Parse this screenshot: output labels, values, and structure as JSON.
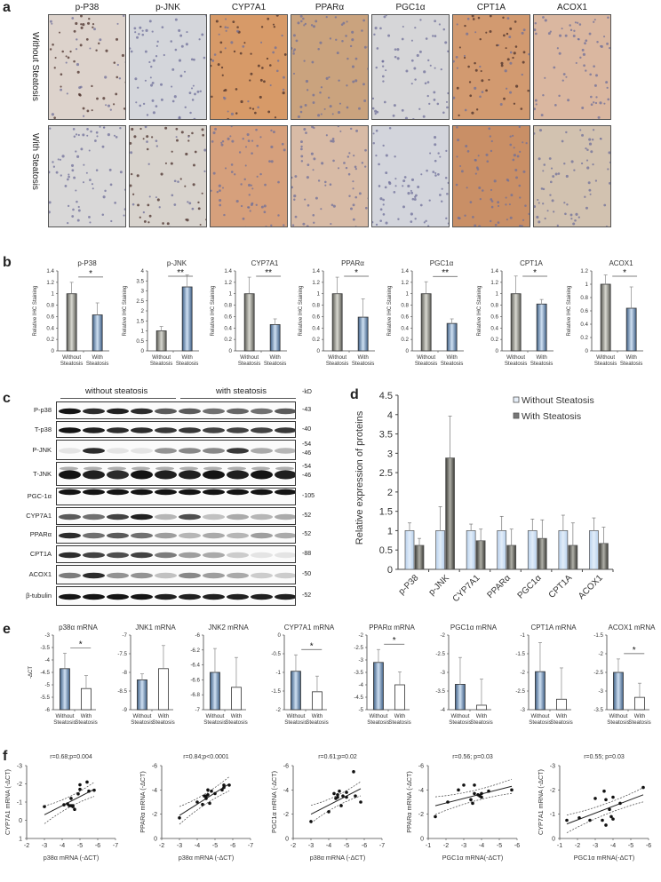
{
  "panel_a": {
    "label": "a",
    "columns": [
      "p-P38",
      "p-JNK",
      "CYP7A1",
      "PPARα",
      "PGC1α",
      "CPT1A",
      "ACOX1"
    ],
    "rows": [
      "Without Steatosis",
      "With Steatosis"
    ],
    "tile_colors": {
      "without": [
        "#ddd3cc",
        "#d4d6db",
        "#d79a68",
        "#caa37e",
        "#d6d6d8",
        "#d29a70",
        "#dab7a0"
      ],
      "with": [
        "#d9d8d8",
        "#d8d3cd",
        "#d6a07c",
        "#d8bba6",
        "#d3d5dc",
        "#c98f66",
        "#d2c2b0"
      ]
    }
  },
  "panel_b": {
    "label": "b",
    "ylabel": "Relative IHC Staining",
    "xlabels": [
      "Without\nSteatosis",
      "With\nSteatosis"
    ]
  },
  "panel_c": {
    "label": "c",
    "group1": "without steatosis",
    "group2": "with steatosis",
    "kd_header": "-kD",
    "blots": [
      {
        "name": "P-p38",
        "kd": [
          "-43"
        ]
      },
      {
        "name": "T-p38",
        "kd": [
          "-40"
        ]
      },
      {
        "name": "P-JNK",
        "kd": [
          "-54",
          "-46"
        ]
      },
      {
        "name": "T-JNK",
        "kd": [
          "-54",
          "-46"
        ]
      },
      {
        "name": "PGC-1α",
        "kd": [
          "-105"
        ]
      },
      {
        "name": "CYP7A1",
        "kd": [
          "-52"
        ]
      },
      {
        "name": "PPARα",
        "kd": [
          "-52"
        ]
      },
      {
        "name": "CPT1A",
        "kd": [
          "-88"
        ]
      },
      {
        "name": "ACOX1",
        "kd": [
          "-50"
        ]
      },
      {
        "name": "β-tubulin",
        "kd": [
          "-52"
        ]
      }
    ]
  },
  "panel_d": {
    "label": "d"
  },
  "panel_e": {
    "label": "e",
    "ylabel": "-ΔCT"
  },
  "panel_f": {
    "label": "f"
  },
  "chart_data": [
    {
      "panel": "b",
      "type": "bar",
      "title": "p-P38",
      "ylabel": "Relative IHC Staining",
      "categories": [
        "Without Steatosis",
        "With Steatosis"
      ],
      "values": [
        1.0,
        0.63
      ],
      "errors": [
        0.2,
        0.21
      ],
      "ylim": [
        0,
        1.4
      ],
      "yticks": [
        0,
        0.2,
        0.4,
        0.6,
        0.8,
        1,
        1.2,
        1.4
      ],
      "significance": "*"
    },
    {
      "panel": "b",
      "type": "bar",
      "title": "p-JNK",
      "ylabel": "Relative IHC Staining",
      "categories": [
        "Without Steatosis",
        "With Steatosis"
      ],
      "values": [
        1.0,
        3.2
      ],
      "errors": [
        0.22,
        0.6
      ],
      "ylim": [
        0,
        4
      ],
      "yticks": [
        0,
        0.5,
        1,
        1.5,
        2,
        2.5,
        3,
        3.5,
        4
      ],
      "significance": "**"
    },
    {
      "panel": "b",
      "type": "bar",
      "title": "CYP7A1",
      "ylabel": "Relative IHC Staining",
      "categories": [
        "Without Steatosis",
        "With Steatosis"
      ],
      "values": [
        1.0,
        0.46
      ],
      "errors": [
        0.29,
        0.1
      ],
      "ylim": [
        0,
        1.4
      ],
      "yticks": [
        0,
        0.2,
        0.4,
        0.6,
        0.8,
        1,
        1.2,
        1.4
      ],
      "significance": "**"
    },
    {
      "panel": "b",
      "type": "bar",
      "title": "PPARα",
      "ylabel": "Relative IHC Staining",
      "categories": [
        "Without Steatosis",
        "With Steatosis"
      ],
      "values": [
        1.0,
        0.59
      ],
      "errors": [
        0.29,
        0.32
      ],
      "ylim": [
        0,
        1.4
      ],
      "yticks": [
        0,
        0.2,
        0.4,
        0.6,
        0.8,
        1,
        1.2,
        1.4
      ],
      "significance": "*"
    },
    {
      "panel": "b",
      "type": "bar",
      "title": "PGC1α",
      "ylabel": "Relative IHC Staining",
      "categories": [
        "Without Steatosis",
        "With Steatosis"
      ],
      "values": [
        1.0,
        0.48
      ],
      "errors": [
        0.21,
        0.08
      ],
      "ylim": [
        0,
        1.4
      ],
      "yticks": [
        0,
        0.2,
        0.4,
        0.6,
        0.8,
        1,
        1.2,
        1.4
      ],
      "significance": "**"
    },
    {
      "panel": "b",
      "type": "bar",
      "title": "CPT1A",
      "ylabel": "Relative IHC Staining",
      "categories": [
        "Without Steatosis",
        "With Steatosis"
      ],
      "values": [
        1.0,
        0.82
      ],
      "errors": [
        0.31,
        0.08
      ],
      "ylim": [
        0,
        1.4
      ],
      "yticks": [
        0,
        0.2,
        0.4,
        0.6,
        0.8,
        1,
        1.2,
        1.4
      ],
      "significance": "*"
    },
    {
      "panel": "b",
      "type": "bar",
      "title": "ACOX1",
      "ylabel": "Relative IHC Staining",
      "categories": [
        "Without Steatosis",
        "With Steatosis"
      ],
      "values": [
        1.0,
        0.64
      ],
      "errors": [
        0.14,
        0.32
      ],
      "ylim": [
        0,
        1.2
      ],
      "yticks": [
        0,
        0.2,
        0.4,
        0.6,
        0.8,
        1,
        1.2
      ],
      "significance": "*"
    },
    {
      "panel": "d",
      "type": "bar",
      "title": "",
      "ylabel": "Relative expression of proteins",
      "categories": [
        "p-P38",
        "p-JNK",
        "CYP7A1",
        "PPARα",
        "PGC1α",
        "CPT1A",
        "ACOX1"
      ],
      "series": [
        {
          "name": "Without Steatosis",
          "values": [
            1,
            1,
            1,
            1,
            1,
            1,
            1
          ],
          "errors": [
            0.2,
            0.62,
            0.17,
            0.37,
            0.3,
            0.4,
            0.33
          ],
          "color": "#c9dcf2"
        },
        {
          "name": "With Steatosis",
          "values": [
            0.62,
            2.88,
            0.74,
            0.62,
            0.8,
            0.62,
            0.67
          ],
          "errors": [
            0.18,
            1.08,
            0.3,
            0.42,
            0.48,
            0.58,
            0.42
          ],
          "color": "#6d6d66"
        }
      ],
      "ylim": [
        0,
        4.5
      ],
      "yticks": [
        0,
        0.5,
        1,
        1.5,
        2,
        2.5,
        3,
        3.5,
        4,
        4.5
      ],
      "legend": "top-right"
    },
    {
      "panel": "e",
      "type": "bar",
      "title": "p38α mRNA",
      "ylabel": "-ΔCT",
      "categories": [
        "Without Steatosis",
        "With Steatosis"
      ],
      "values": [
        -4.35,
        -5.15
      ],
      "errors": [
        0.62,
        0.52
      ],
      "ylim": [
        -6,
        -3
      ],
      "yticks": [
        -6,
        -5.5,
        -5,
        -4.5,
        -4,
        -3.5,
        -3
      ],
      "significance": "*"
    },
    {
      "panel": "e",
      "type": "bar",
      "title": "JNK1 mRNA",
      "ylabel": "",
      "categories": [
        "Without Steatosis",
        "With Steatosis"
      ],
      "values": [
        -8.2,
        -7.9
      ],
      "errors": [
        0.16,
        0.62
      ],
      "ylim": [
        -9,
        -7
      ],
      "yticks": [
        -9,
        -8.5,
        -8,
        -7.5,
        -7
      ]
    },
    {
      "panel": "e",
      "type": "bar",
      "title": "JNK2 mRNA",
      "ylabel": "",
      "categories": [
        "Without Steatosis",
        "With Steatosis"
      ],
      "values": [
        -6.5,
        -6.7
      ],
      "errors": [
        0.32,
        0.4
      ],
      "ylim": [
        -7,
        -6
      ],
      "yticks": [
        -7,
        -6.8,
        -6.6,
        -6.4,
        -6.2,
        -6
      ]
    },
    {
      "panel": "e",
      "type": "bar",
      "title": "CYP7A1 mRNA",
      "ylabel": "",
      "categories": [
        "Without Steatosis",
        "With Steatosis"
      ],
      "values": [
        -0.97,
        -1.52
      ],
      "errors": [
        0.44,
        0.42
      ],
      "ylim": [
        -2,
        0
      ],
      "yticks": [
        -2,
        -1.5,
        -1,
        -0.5,
        0
      ],
      "significance": "*"
    },
    {
      "panel": "e",
      "type": "bar",
      "title": "PPARα mRNA",
      "ylabel": "",
      "categories": [
        "Without Steatosis",
        "With Steatosis"
      ],
      "values": [
        -3.1,
        -4.0
      ],
      "errors": [
        0.52,
        0.52
      ],
      "ylim": [
        -5,
        -2
      ],
      "yticks": [
        -5,
        -4.5,
        -4,
        -3.5,
        -3,
        -2.5,
        -2
      ],
      "significance": "*"
    },
    {
      "panel": "e",
      "type": "bar",
      "title": "PGC1α mRNA",
      "ylabel": "",
      "categories": [
        "Without Steatosis",
        "With Steatosis"
      ],
      "values": [
        -3.32,
        -3.88
      ],
      "errors": [
        0.72,
        0.7
      ],
      "ylim": [
        -4,
        -2
      ],
      "yticks": [
        -4,
        -3.5,
        -3,
        -2.5,
        -2
      ]
    },
    {
      "panel": "e",
      "type": "bar",
      "title": "CPT1A mRNA",
      "ylabel": "",
      "categories": [
        "Without Steatosis",
        "With Steatosis"
      ],
      "values": [
        -1.98,
        -2.72
      ],
      "errors": [
        0.78,
        0.84
      ],
      "ylim": [
        -3,
        -1
      ],
      "yticks": [
        -3,
        -2.5,
        -2,
        -1.5,
        -1
      ]
    },
    {
      "panel": "e",
      "type": "bar",
      "title": "ACOX1 mRNA",
      "ylabel": "",
      "categories": [
        "Without Steatosis",
        "With Steatosis"
      ],
      "values": [
        -2.5,
        -3.17
      ],
      "errors": [
        0.36,
        0.38
      ],
      "ylim": [
        -3.5,
        -1.5
      ],
      "yticks": [
        -3.5,
        -3,
        -2.5,
        -2,
        -1.5
      ],
      "significance": "*"
    },
    {
      "panel": "f",
      "type": "scatter",
      "title": "r=0.68;p=0.004",
      "xlabel": "p38α mRNA (-ΔCT)",
      "ylabel": "CYP7A1 mRNA (-ΔCT)",
      "xlim": [
        -2,
        -7
      ],
      "ylim": [
        1,
        -3
      ],
      "xticks": [
        -2,
        -3,
        -4,
        -5,
        -6,
        -7
      ],
      "yticks": [
        1,
        0,
        -1,
        -2,
        -3
      ],
      "x": [
        -3.0,
        -4.1,
        -4.3,
        -4.4,
        -4.5,
        -4.5,
        -4.6,
        -4.7,
        -4.9,
        -5.0,
        -5.0,
        -5.4,
        -5.5,
        -5.8,
        -4.6
      ],
      "y": [
        -0.75,
        -0.85,
        -0.9,
        -0.8,
        -0.8,
        -1.2,
        -0.8,
        -0.6,
        -1.45,
        -1.7,
        -1.95,
        -2.1,
        -1.6,
        -1.65,
        -0.75
      ],
      "fit": {
        "x": [
          -3.0,
          -5.8
        ],
        "y": [
          -0.3,
          -1.7
        ]
      }
    },
    {
      "panel": "f",
      "type": "scatter",
      "title": "r=0.84;p<0.0001",
      "xlabel": "p38α mRNA (-ΔCT)",
      "ylabel": "PPARα mRNA (-ΔCT)",
      "xlim": [
        -2,
        -7
      ],
      "ylim": [
        0,
        -6
      ],
      "xticks": [
        -2,
        -3,
        -4,
        -5,
        -6,
        -7
      ],
      "yticks": [
        0,
        -2,
        -4,
        -6
      ],
      "x": [
        -3.0,
        -4.0,
        -4.3,
        -4.4,
        -4.5,
        -4.5,
        -4.6,
        -4.6,
        -4.7,
        -4.8,
        -5.0,
        -5.4,
        -5.5,
        -5.8,
        -5.5
      ],
      "y": [
        -1.7,
        -3.0,
        -2.8,
        -3.5,
        -3.3,
        -3.5,
        -4.0,
        -3.6,
        -2.9,
        -3.9,
        -3.7,
        -4.0,
        -4.4,
        -4.4,
        -4.2
      ],
      "fit": {
        "x": [
          -3.0,
          -5.8
        ],
        "y": [
          -1.9,
          -4.5
        ]
      }
    },
    {
      "panel": "f",
      "type": "scatter",
      "title": "r=0.61;p=0.02",
      "xlabel": "p38α mRNA (-ΔCT)",
      "ylabel": "PGC1α mRNA (-ΔCT)",
      "xlim": [
        -2,
        -7
      ],
      "ylim": [
        0,
        -6
      ],
      "xticks": [
        -2,
        -3,
        -4,
        -5,
        -6,
        -7
      ],
      "yticks": [
        0,
        -2,
        -4,
        -6
      ],
      "x": [
        -3.0,
        -4.0,
        -4.3,
        -4.4,
        -4.5,
        -4.5,
        -4.6,
        -4.7,
        -4.8,
        -5.0,
        -5.0,
        -5.4,
        -5.5,
        -5.8
      ],
      "y": [
        -1.4,
        -2.2,
        -3.7,
        -3.3,
        -3.4,
        -3.6,
        -3.9,
        -2.7,
        -3.5,
        -3.8,
        -3.4,
        -5.5,
        -3.5,
        -3.0
      ],
      "fit": {
        "x": [
          -3.0,
          -5.8
        ],
        "y": [
          -2.0,
          -4.1
        ]
      }
    },
    {
      "panel": "f",
      "type": "scatter",
      "title": "r=0.56; p=0.03",
      "xlabel": "PGC1α mRNA(-ΔCT)",
      "ylabel": "PPARα mRNA (-ΔCT)",
      "xlim": [
        -1,
        -6
      ],
      "ylim": [
        0,
        -6
      ],
      "xticks": [
        -1,
        -2,
        -3,
        -4,
        -5,
        -6
      ],
      "yticks": [
        0,
        -2,
        -4,
        -6
      ],
      "x": [
        -1.4,
        -2.1,
        -2.7,
        -3.0,
        -3.4,
        -3.5,
        -3.6,
        -3.6,
        -3.8,
        -3.9,
        -4.0,
        -4.0,
        -4.4,
        -5.7
      ],
      "y": [
        -1.8,
        -3.0,
        -4.0,
        -4.4,
        -3.2,
        -2.9,
        -4.4,
        -3.7,
        -3.6,
        -3.5,
        -3.7,
        -3.4,
        -3.9,
        -4.0
      ],
      "fit": {
        "x": [
          -1.4,
          -5.7
        ],
        "y": [
          -2.7,
          -4.3
        ]
      }
    },
    {
      "panel": "f",
      "type": "scatter",
      "title": "r=0.55; p=0.03",
      "xlabel": "PGC1α mRNA(-ΔCT)",
      "ylabel": "CYP7A1 mRNA (-ΔCT)",
      "xlim": [
        -1,
        -6
      ],
      "ylim": [
        0,
        -3
      ],
      "xticks": [
        -1,
        -2,
        -3,
        -4,
        -5,
        -6
      ],
      "yticks": [
        0,
        -1,
        -2,
        -3
      ],
      "x": [
        -1.4,
        -2.1,
        -2.7,
        -3.0,
        -3.4,
        -3.5,
        -3.6,
        -3.6,
        -3.8,
        -3.9,
        -4.0,
        -4.0,
        -4.4,
        -5.7
      ],
      "y": [
        -0.75,
        -0.85,
        -0.75,
        -1.65,
        -0.75,
        -1.95,
        -1.6,
        -0.55,
        -1.2,
        -0.9,
        -1.7,
        -0.8,
        -1.45,
        -2.1
      ],
      "fit": {
        "x": [
          -1.4,
          -5.7
        ],
        "y": [
          -0.6,
          -1.8
        ]
      }
    }
  ]
}
